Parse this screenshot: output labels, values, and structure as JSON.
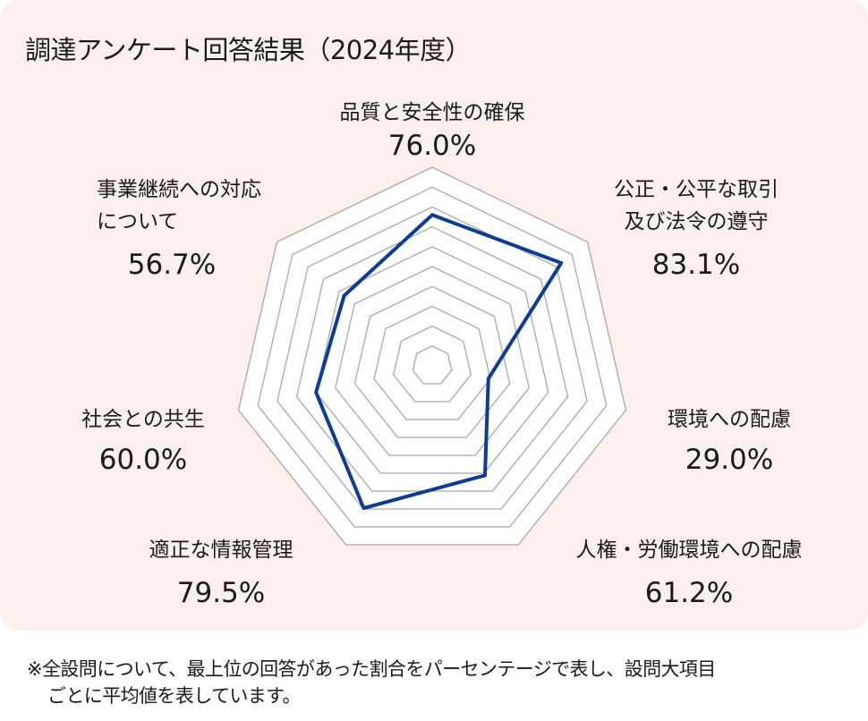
{
  "chart_data": {
    "type": "radar",
    "title": "調達アンケート回答結果（2024年度）",
    "range": [
      0,
      100
    ],
    "rings": 10,
    "line_color": "#0d3c96",
    "grid_color": "#a8a8a8",
    "background": "#fcefec",
    "categories": [
      {
        "label_lines": [
          "品質と安全性の確保"
        ],
        "value": 76.0,
        "value_label": "76.0%"
      },
      {
        "label_lines": [
          "公正・公平な取引",
          "及び法令の遵守"
        ],
        "value": 83.1,
        "value_label": "83.1%"
      },
      {
        "label_lines": [
          "環境への配慮"
        ],
        "value": 29.0,
        "value_label": "29.0%"
      },
      {
        "label_lines": [
          "人権・労働環境への配慮"
        ],
        "value": 61.2,
        "value_label": "61.2%"
      },
      {
        "label_lines": [
          "適正な情報管理"
        ],
        "value": 79.5,
        "value_label": "79.5%"
      },
      {
        "label_lines": [
          "社会との共生"
        ],
        "value": 60.0,
        "value_label": "60.0%"
      },
      {
        "label_lines": [
          "事業継続への対応",
          "について"
        ],
        "value": 56.7,
        "value_label": "56.7%"
      }
    ]
  },
  "footnote": [
    "※全設問について、最上位の回答があった割合をパーセンテージで表し、設問大項目",
    "ごとに平均値を表しています。"
  ]
}
